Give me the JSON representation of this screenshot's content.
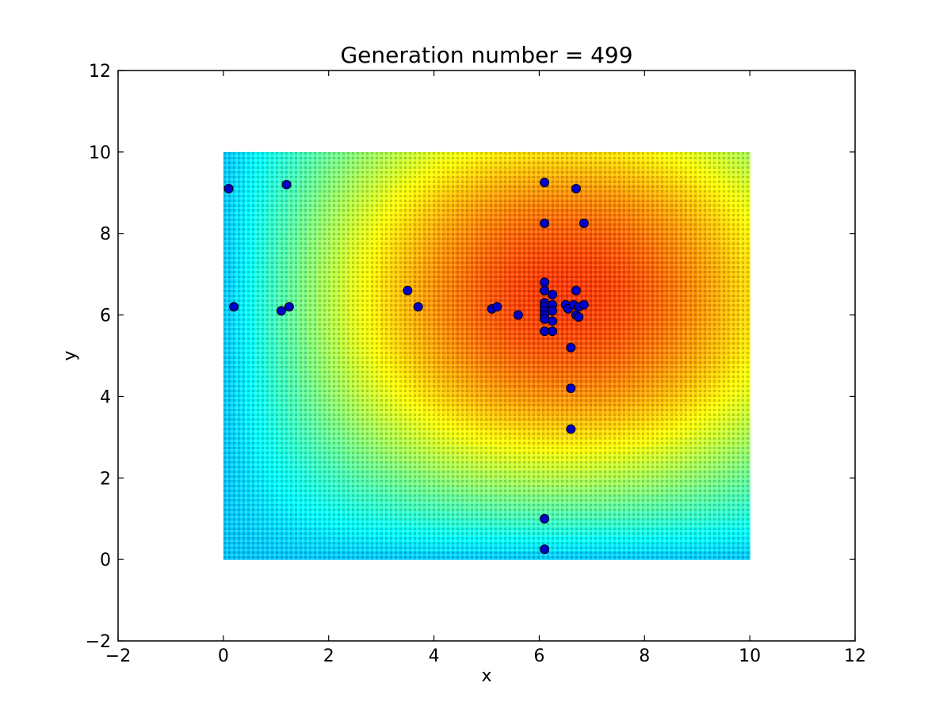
{
  "chart_data": {
    "type": "scatter",
    "title": "Generation number = 499",
    "xlabel": "x",
    "ylabel": "y",
    "xlim": [
      -2,
      12
    ],
    "ylim": [
      -2,
      12
    ],
    "xticks": [
      -2,
      0,
      2,
      4,
      6,
      8,
      10,
      12
    ],
    "yticks": [
      -2,
      0,
      2,
      4,
      6,
      8,
      10,
      12
    ],
    "xtick_labels": [
      "−2",
      "0",
      "2",
      "4",
      "6",
      "8",
      "10",
      "12"
    ],
    "ytick_labels": [
      "−2",
      "0",
      "2",
      "4",
      "6",
      "8",
      "10",
      "12"
    ],
    "grid": false,
    "background": {
      "type": "heatmap",
      "x_range": [
        0,
        10
      ],
      "y_range": [
        0,
        10
      ],
      "colormap": "jet"
    },
    "marker_color": "#0000cc",
    "marker_edge_color": "#000000",
    "points": [
      {
        "x": 0.1,
        "y": 9.1
      },
      {
        "x": 1.2,
        "y": 9.2
      },
      {
        "x": 0.2,
        "y": 6.2
      },
      {
        "x": 1.1,
        "y": 6.1
      },
      {
        "x": 1.25,
        "y": 6.2
      },
      {
        "x": 3.5,
        "y": 6.6
      },
      {
        "x": 3.7,
        "y": 6.2
      },
      {
        "x": 5.1,
        "y": 6.15
      },
      {
        "x": 5.2,
        "y": 6.2
      },
      {
        "x": 5.6,
        "y": 6.0
      },
      {
        "x": 6.1,
        "y": 9.25
      },
      {
        "x": 6.1,
        "y": 8.25
      },
      {
        "x": 6.1,
        "y": 6.8
      },
      {
        "x": 6.1,
        "y": 6.6
      },
      {
        "x": 6.1,
        "y": 6.3
      },
      {
        "x": 6.1,
        "y": 6.2
      },
      {
        "x": 6.1,
        "y": 6.1
      },
      {
        "x": 6.1,
        "y": 6.0
      },
      {
        "x": 6.1,
        "y": 5.9
      },
      {
        "x": 6.1,
        "y": 5.6
      },
      {
        "x": 6.25,
        "y": 6.5
      },
      {
        "x": 6.25,
        "y": 6.25
      },
      {
        "x": 6.25,
        "y": 6.1
      },
      {
        "x": 6.25,
        "y": 5.85
      },
      {
        "x": 6.25,
        "y": 5.6
      },
      {
        "x": 6.5,
        "y": 6.25
      },
      {
        "x": 6.55,
        "y": 6.15
      },
      {
        "x": 6.7,
        "y": 9.1
      },
      {
        "x": 6.85,
        "y": 8.25
      },
      {
        "x": 6.7,
        "y": 6.6
      },
      {
        "x": 6.65,
        "y": 6.25
      },
      {
        "x": 6.75,
        "y": 6.2
      },
      {
        "x": 6.85,
        "y": 6.25
      },
      {
        "x": 6.7,
        "y": 6.0
      },
      {
        "x": 6.75,
        "y": 5.95
      },
      {
        "x": 6.6,
        "y": 5.2
      },
      {
        "x": 6.6,
        "y": 4.2
      },
      {
        "x": 6.6,
        "y": 3.2
      },
      {
        "x": 6.1,
        "y": 1.0
      },
      {
        "x": 6.1,
        "y": 0.25
      }
    ]
  }
}
